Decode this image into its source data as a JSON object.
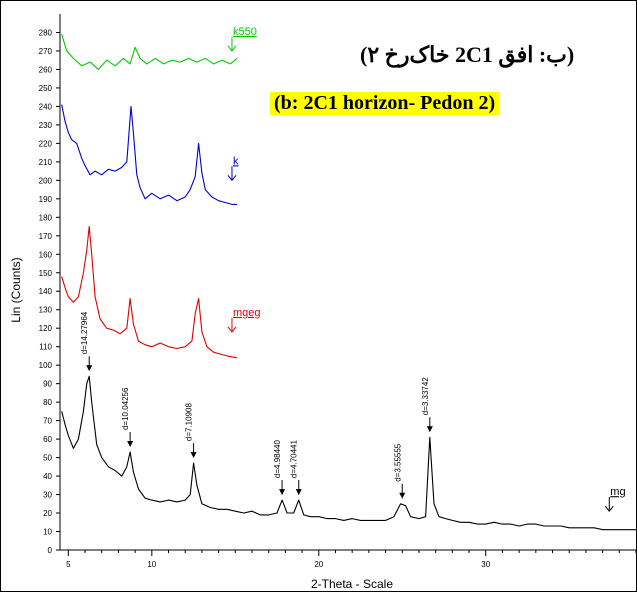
{
  "chart_data": {
    "type": "line",
    "title": "(ب: افق 2C1 خاک‌رخ ۲)",
    "subtitle": "(b: 2C1 horizon- Pedon 2)",
    "xlabel": "2-Theta - Scale",
    "ylabel": "Lin (Counts)",
    "xlim": [
      4.5,
      39
    ],
    "ylim": [
      0,
      290
    ],
    "x_ticks": [
      5,
      10,
      20,
      30
    ],
    "y_ticks": [
      0,
      10,
      20,
      30,
      40,
      50,
      60,
      70,
      80,
      90,
      100,
      110,
      120,
      130,
      140,
      150,
      160,
      170,
      180,
      190,
      200,
      210,
      220,
      230,
      240,
      250,
      260,
      270,
      280
    ],
    "grid": false,
    "series": [
      {
        "name": "k550",
        "color": "#00cc00",
        "points": [
          [
            4.6,
            279
          ],
          [
            4.9,
            270
          ],
          [
            5.3,
            266
          ],
          [
            5.8,
            262
          ],
          [
            6.3,
            264
          ],
          [
            6.8,
            260
          ],
          [
            7.3,
            265
          ],
          [
            7.8,
            262
          ],
          [
            8.3,
            266
          ],
          [
            8.7,
            263
          ],
          [
            9.0,
            272
          ],
          [
            9.3,
            266
          ],
          [
            9.7,
            263
          ],
          [
            10.2,
            266
          ],
          [
            10.7,
            263
          ],
          [
            11.2,
            265
          ],
          [
            11.7,
            264
          ],
          [
            12.2,
            266
          ],
          [
            12.7,
            264
          ],
          [
            13.2,
            266
          ],
          [
            13.7,
            263
          ],
          [
            14.2,
            265
          ],
          [
            14.7,
            263
          ],
          [
            15.1,
            266
          ]
        ]
      },
      {
        "name": "k",
        "color": "#0000cc",
        "points": [
          [
            4.6,
            241
          ],
          [
            4.8,
            232
          ],
          [
            5.0,
            226
          ],
          [
            5.2,
            222
          ],
          [
            5.5,
            220
          ],
          [
            5.8,
            212
          ],
          [
            6.0,
            208
          ],
          [
            6.3,
            203
          ],
          [
            6.6,
            205
          ],
          [
            7.0,
            203
          ],
          [
            7.4,
            206
          ],
          [
            7.8,
            205
          ],
          [
            8.2,
            207
          ],
          [
            8.5,
            210
          ],
          [
            8.75,
            240
          ],
          [
            8.9,
            225
          ],
          [
            9.1,
            203
          ],
          [
            9.3,
            196
          ],
          [
            9.6,
            190
          ],
          [
            10.0,
            193
          ],
          [
            10.5,
            190
          ],
          [
            11.0,
            192
          ],
          [
            11.5,
            189
          ],
          [
            12.0,
            191
          ],
          [
            12.3,
            195
          ],
          [
            12.6,
            202
          ],
          [
            12.8,
            220
          ],
          [
            13.0,
            204
          ],
          [
            13.2,
            195
          ],
          [
            13.6,
            191
          ],
          [
            14.0,
            189
          ],
          [
            14.4,
            188
          ],
          [
            14.8,
            187
          ],
          [
            15.1,
            187
          ]
        ]
      },
      {
        "name": "mgeg",
        "color": "#dd0000",
        "points": [
          [
            4.6,
            148
          ],
          [
            4.8,
            142
          ],
          [
            5.0,
            137
          ],
          [
            5.3,
            134
          ],
          [
            5.6,
            137
          ],
          [
            5.9,
            150
          ],
          [
            6.1,
            162
          ],
          [
            6.25,
            175
          ],
          [
            6.4,
            160
          ],
          [
            6.6,
            137
          ],
          [
            6.9,
            125
          ],
          [
            7.3,
            120
          ],
          [
            7.7,
            119
          ],
          [
            8.1,
            117
          ],
          [
            8.5,
            120
          ],
          [
            8.7,
            136
          ],
          [
            8.9,
            122
          ],
          [
            9.2,
            113
          ],
          [
            9.6,
            111
          ],
          [
            10.0,
            110
          ],
          [
            10.5,
            112
          ],
          [
            11.0,
            110
          ],
          [
            11.5,
            109
          ],
          [
            12.0,
            110
          ],
          [
            12.4,
            113
          ],
          [
            12.6,
            128
          ],
          [
            12.8,
            136
          ],
          [
            13.0,
            118
          ],
          [
            13.3,
            110
          ],
          [
            13.7,
            107
          ],
          [
            14.1,
            106
          ],
          [
            14.5,
            105
          ],
          [
            15.1,
            104
          ]
        ]
      },
      {
        "name": "mg",
        "color": "#000000",
        "points": [
          [
            4.6,
            75
          ],
          [
            4.8,
            68
          ],
          [
            5.0,
            62
          ],
          [
            5.3,
            55
          ],
          [
            5.6,
            60
          ],
          [
            5.9,
            75
          ],
          [
            6.1,
            90
          ],
          [
            6.25,
            94
          ],
          [
            6.4,
            80
          ],
          [
            6.7,
            57
          ],
          [
            7.0,
            50
          ],
          [
            7.4,
            45
          ],
          [
            7.8,
            43
          ],
          [
            8.2,
            40
          ],
          [
            8.5,
            45
          ],
          [
            8.7,
            53
          ],
          [
            8.9,
            42
          ],
          [
            9.2,
            33
          ],
          [
            9.6,
            28
          ],
          [
            10.0,
            27
          ],
          [
            10.5,
            26
          ],
          [
            11.0,
            27
          ],
          [
            11.5,
            26
          ],
          [
            12.0,
            27
          ],
          [
            12.3,
            30
          ],
          [
            12.5,
            47
          ],
          [
            12.7,
            35
          ],
          [
            13.0,
            25
          ],
          [
            13.5,
            23
          ],
          [
            14.0,
            22
          ],
          [
            14.5,
            22
          ],
          [
            15.0,
            21
          ],
          [
            15.5,
            20
          ],
          [
            16.0,
            21
          ],
          [
            16.5,
            19
          ],
          [
            17.0,
            19
          ],
          [
            17.5,
            20
          ],
          [
            17.8,
            27
          ],
          [
            18.1,
            20
          ],
          [
            18.5,
            20
          ],
          [
            18.8,
            27
          ],
          [
            19.1,
            19
          ],
          [
            19.5,
            18
          ],
          [
            20.0,
            18
          ],
          [
            20.5,
            17
          ],
          [
            21.0,
            17
          ],
          [
            21.5,
            16
          ],
          [
            22.0,
            17
          ],
          [
            22.5,
            16
          ],
          [
            23.0,
            16
          ],
          [
            23.5,
            16
          ],
          [
            24.0,
            16
          ],
          [
            24.5,
            18
          ],
          [
            24.9,
            25
          ],
          [
            25.2,
            24
          ],
          [
            25.5,
            18
          ],
          [
            26.0,
            17
          ],
          [
            26.4,
            18
          ],
          [
            26.65,
            61
          ],
          [
            26.9,
            25
          ],
          [
            27.2,
            18
          ],
          [
            27.6,
            17
          ],
          [
            28.0,
            16
          ],
          [
            28.5,
            15
          ],
          [
            29.0,
            15
          ],
          [
            29.5,
            14
          ],
          [
            30.0,
            14
          ],
          [
            30.5,
            15
          ],
          [
            31.0,
            14
          ],
          [
            31.5,
            14
          ],
          [
            32.0,
            13
          ],
          [
            32.5,
            14
          ],
          [
            33.0,
            14
          ],
          [
            33.5,
            13
          ],
          [
            34.0,
            13
          ],
          [
            34.5,
            13
          ],
          [
            35.0,
            12
          ],
          [
            35.5,
            12
          ],
          [
            36.0,
            12
          ],
          [
            36.5,
            12
          ],
          [
            37.0,
            11
          ],
          [
            37.5,
            11
          ],
          [
            38.0,
            11
          ],
          [
            38.5,
            11
          ],
          [
            39.0,
            11
          ]
        ]
      }
    ],
    "peak_labels": [
      {
        "text": "d=14.27964",
        "x": 6.25,
        "y": 94
      },
      {
        "text": "d=10.04256",
        "x": 8.7,
        "y": 53
      },
      {
        "text": "d=7.10908",
        "x": 12.5,
        "y": 47
      },
      {
        "text": "d=4.98440",
        "x": 17.8,
        "y": 27
      },
      {
        "text": "d=4.70441",
        "x": 18.8,
        "y": 27
      },
      {
        "text": "d=3.55555",
        "x": 25.0,
        "y": 25
      },
      {
        "text": "d=3.33742",
        "x": 26.65,
        "y": 61
      }
    ],
    "series_labels": [
      {
        "text": "k550",
        "color": "#00cc00",
        "x": 14.8,
        "y": 270
      },
      {
        "text": "k",
        "color": "#0000cc",
        "x": 14.8,
        "y": 200
      },
      {
        "text": "mgeg",
        "color": "#dd0000",
        "x": 14.8,
        "y": 118
      },
      {
        "text": "mg",
        "color": "#000000",
        "x": 37.4,
        "y": 21
      }
    ]
  }
}
